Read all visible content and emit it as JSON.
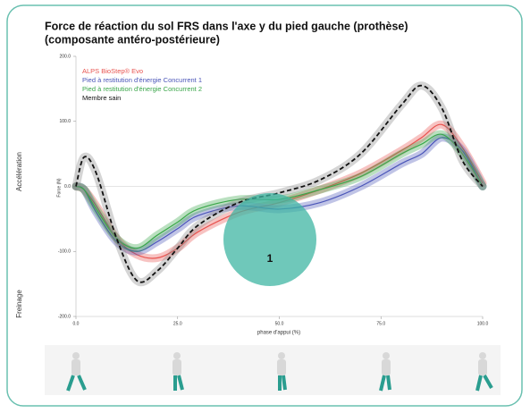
{
  "chart_data": {
    "type": "line",
    "title": [
      "Force de réaction du sol FRS dans l'axe y du pied gauche (prothèse)",
      "(composante antéro-postérieure)"
    ],
    "x_label": "phase d'appui (%)",
    "y_label": "Force (N)",
    "side_labels": [
      "Accélération",
      "Freinage"
    ],
    "annotation": "1",
    "x": [
      0,
      2,
      5,
      10,
      15,
      20,
      25,
      30,
      40,
      50,
      60,
      70,
      80,
      85,
      90,
      95,
      100
    ],
    "series": [
      {
        "name": "ALPS BioStep® Evo",
        "color": "#e8534f",
        "values": [
          0,
          -5,
          -30,
          -80,
          -105,
          -110,
          -95,
          -70,
          -40,
          -25,
          -5,
          20,
          55,
          75,
          95,
          60,
          5
        ]
      },
      {
        "name": "Pied à restitution d'énergie Concurrent 1",
        "color": "#4a55b8",
        "values": [
          0,
          -5,
          -40,
          -85,
          -100,
          -85,
          -65,
          -45,
          -30,
          -35,
          -25,
          0,
          35,
          50,
          75,
          55,
          0
        ]
      },
      {
        "name": "Pied à restitution d'énergie Concurrent 2",
        "color": "#3aa64a",
        "values": [
          0,
          -5,
          -35,
          -80,
          -95,
          -75,
          -55,
          -35,
          -20,
          -20,
          -5,
          15,
          50,
          65,
          80,
          50,
          0
        ]
      },
      {
        "name": "Membre sain",
        "color": "#111111",
        "values": [
          0,
          45,
          20,
          -80,
          -145,
          -130,
          -95,
          -60,
          -25,
          -10,
          10,
          50,
          125,
          155,
          120,
          40,
          0
        ]
      }
    ],
    "xlim": [
      0,
      100
    ],
    "xticks": [
      {
        "value": 0,
        "label": "0.0"
      },
      {
        "value": 25,
        "label": "25.0"
      },
      {
        "value": 50,
        "label": "50.0"
      },
      {
        "value": 75,
        "label": "75.0"
      },
      {
        "value": 100,
        "label": "100.0"
      }
    ],
    "ylim": [
      -200,
      200
    ],
    "yticks": [
      {
        "value": 200,
        "label": "200.0"
      },
      {
        "value": 100,
        "label": "100.0"
      },
      {
        "value": 0,
        "label": "0.0"
      },
      {
        "value": -100,
        "label": "-100.0"
      },
      {
        "value": -200,
        "label": "-200.0"
      }
    ]
  }
}
